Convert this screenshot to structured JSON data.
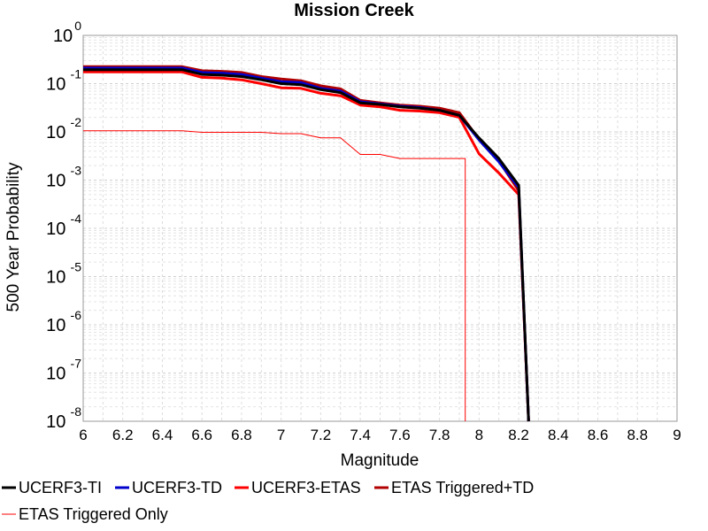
{
  "chart_data": {
    "type": "line",
    "title": "Mission Creek",
    "xlabel": "Magnitude",
    "ylabel": "500 Year Probability",
    "xlim": [
      6,
      9
    ],
    "ylim": [
      1e-08,
      1
    ],
    "yscale": "log",
    "grid": true,
    "legend_position": "bottom",
    "x_ticks": [
      "6",
      "6.2",
      "6.4",
      "6.6",
      "6.8",
      "7",
      "7.2",
      "7.4",
      "7.6",
      "7.8",
      "8",
      "8.2",
      "8.4",
      "8.6",
      "8.8",
      "9"
    ],
    "y_ticks": [
      {
        "base": "10",
        "exp": "0"
      },
      {
        "base": "10",
        "exp": "-1"
      },
      {
        "base": "10",
        "exp": "-2"
      },
      {
        "base": "10",
        "exp": "-3"
      },
      {
        "base": "10",
        "exp": "-4"
      },
      {
        "base": "10",
        "exp": "-5"
      },
      {
        "base": "10",
        "exp": "-6"
      },
      {
        "base": "10",
        "exp": "-7"
      },
      {
        "base": "10",
        "exp": "-8"
      }
    ],
    "x": [
      6.0,
      6.1,
      6.2,
      6.3,
      6.4,
      6.5,
      6.6,
      6.7,
      6.8,
      6.9,
      7.0,
      7.1,
      7.2,
      7.3,
      7.4,
      7.5,
      7.6,
      7.7,
      7.8,
      7.9,
      8.0,
      8.1,
      8.2,
      8.25
    ],
    "series": [
      {
        "name": "UCERF3-TI",
        "color": "#000000",
        "width": 3,
        "values": [
          0.195,
          0.195,
          0.195,
          0.195,
          0.195,
          0.195,
          0.155,
          0.15,
          0.14,
          0.12,
          0.1,
          0.095,
          0.075,
          0.065,
          0.04,
          0.037,
          0.033,
          0.031,
          0.028,
          0.022,
          0.0075,
          0.0028,
          0.00078,
          1e-08
        ]
      },
      {
        "name": "UCERF3-TD",
        "color": "#0000cc",
        "width": 3,
        "values": [
          0.21,
          0.21,
          0.21,
          0.21,
          0.21,
          0.21,
          0.17,
          0.165,
          0.155,
          0.13,
          0.11,
          0.105,
          0.08,
          0.07,
          0.042,
          0.038,
          0.034,
          0.032,
          0.028,
          0.022,
          0.0068,
          0.0024,
          0.0007,
          1e-08
        ]
      },
      {
        "name": "UCERF3-ETAS",
        "color": "#ff0000",
        "width": 3,
        "values": [
          0.175,
          0.175,
          0.175,
          0.175,
          0.175,
          0.175,
          0.135,
          0.13,
          0.12,
          0.1,
          0.082,
          0.08,
          0.063,
          0.056,
          0.036,
          0.033,
          0.028,
          0.027,
          0.025,
          0.02,
          0.0035,
          0.0014,
          0.0005,
          1e-08
        ]
      },
      {
        "name": "ETAS Triggered+TD",
        "color": "#b00000",
        "width": 3,
        "values": [
          0.225,
          0.225,
          0.225,
          0.225,
          0.225,
          0.225,
          0.185,
          0.18,
          0.17,
          0.14,
          0.125,
          0.115,
          0.09,
          0.078,
          0.045,
          0.04,
          0.036,
          0.034,
          0.031,
          0.025,
          0.007,
          0.0025,
          0.0006,
          1e-08
        ]
      },
      {
        "name": "ETAS Triggered Only",
        "color": "#ff0000",
        "width": 1,
        "values": [
          0.0105,
          0.0105,
          0.0105,
          0.0105,
          0.0105,
          0.0105,
          0.0098,
          0.0098,
          0.0098,
          0.0098,
          0.0092,
          0.0092,
          0.0075,
          0.0075,
          0.0034,
          0.0034,
          0.0028,
          0.0028,
          0.0028,
          0.0028,
          null,
          null,
          null,
          null
        ],
        "drop_to": 7.93
      }
    ]
  }
}
